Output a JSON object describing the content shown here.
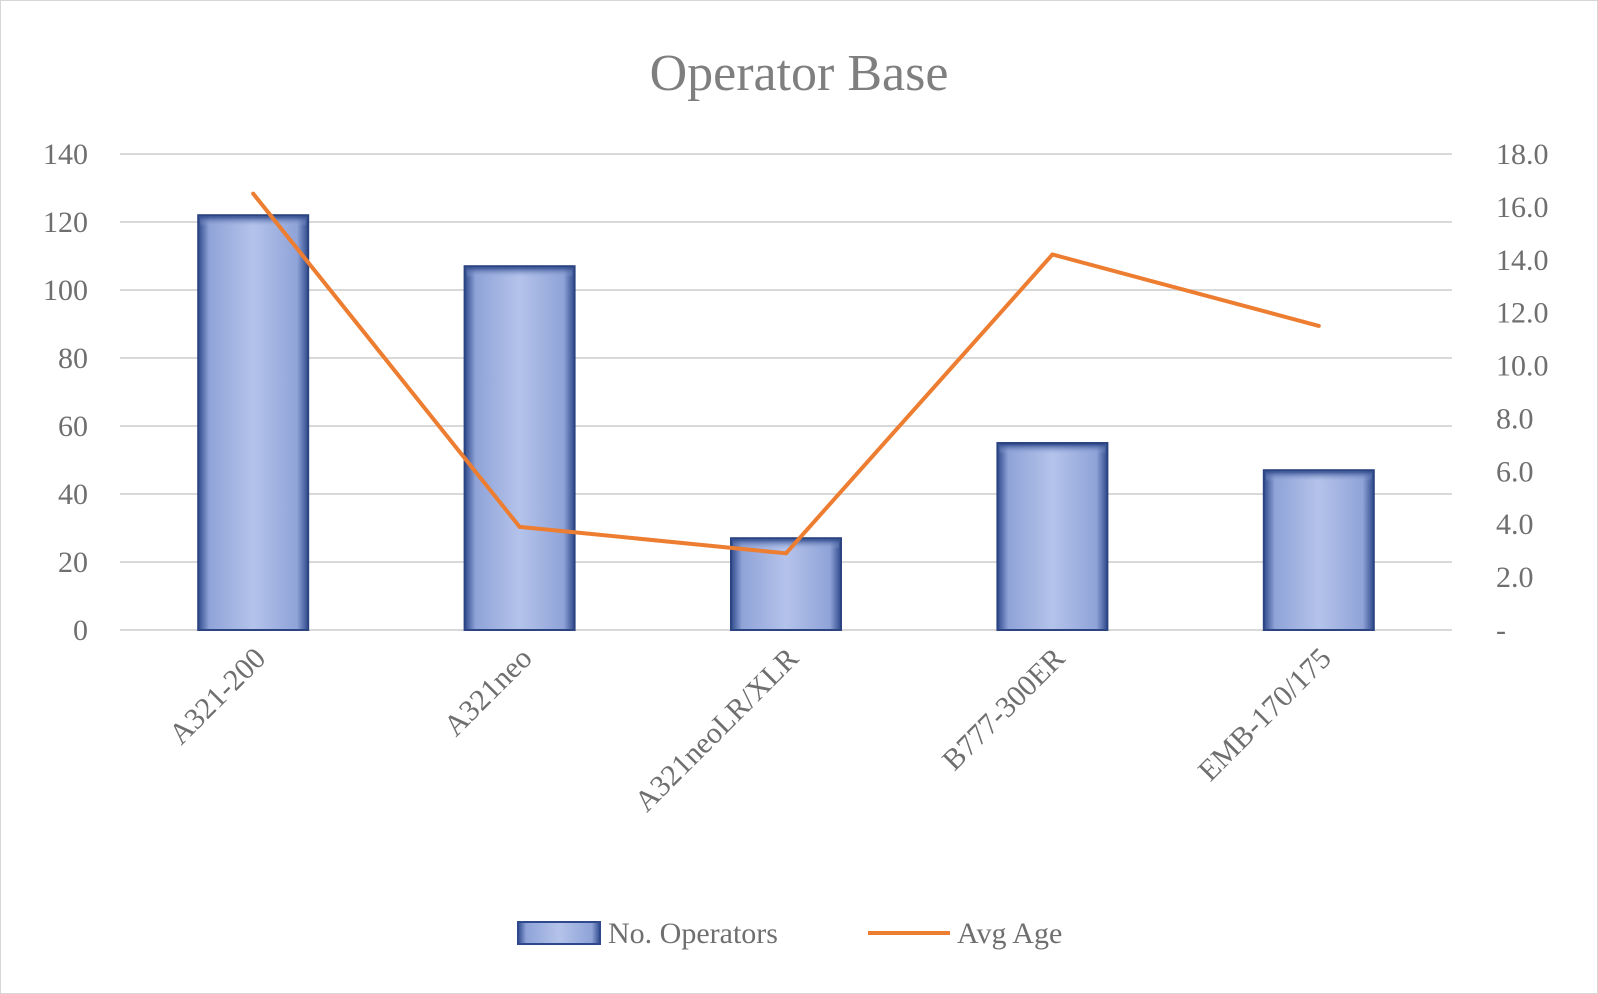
{
  "chart_data": {
    "type": "bar",
    "title": "Operator Base",
    "categories": [
      "A321-200",
      "A321neo",
      "A321neoLR/XLR",
      "B777-300ER",
      "EMB-170/175"
    ],
    "series": [
      {
        "name": "No. Operators",
        "type": "bar",
        "axis": "left",
        "color": "#8fa3d8",
        "values": [
          122,
          107,
          27,
          55,
          47
        ]
      },
      {
        "name": "Avg Age",
        "type": "line",
        "axis": "right",
        "color": "#ed7d31",
        "values": [
          16.5,
          3.9,
          2.9,
          14.2,
          11.5
        ]
      }
    ],
    "y_left": {
      "min": 0,
      "max": 140,
      "step": 20,
      "ticks": [
        "0",
        "20",
        "40",
        "60",
        "80",
        "100",
        "120",
        "140"
      ]
    },
    "y_right": {
      "min": 0,
      "max": 18,
      "step": 2,
      "ticks": [
        "-",
        "2.0",
        "4.0",
        "6.0",
        "8.0",
        "10.0",
        "12.0",
        "14.0",
        "16.0",
        "18.0"
      ]
    },
    "grid": true,
    "legend_position": "bottom"
  }
}
